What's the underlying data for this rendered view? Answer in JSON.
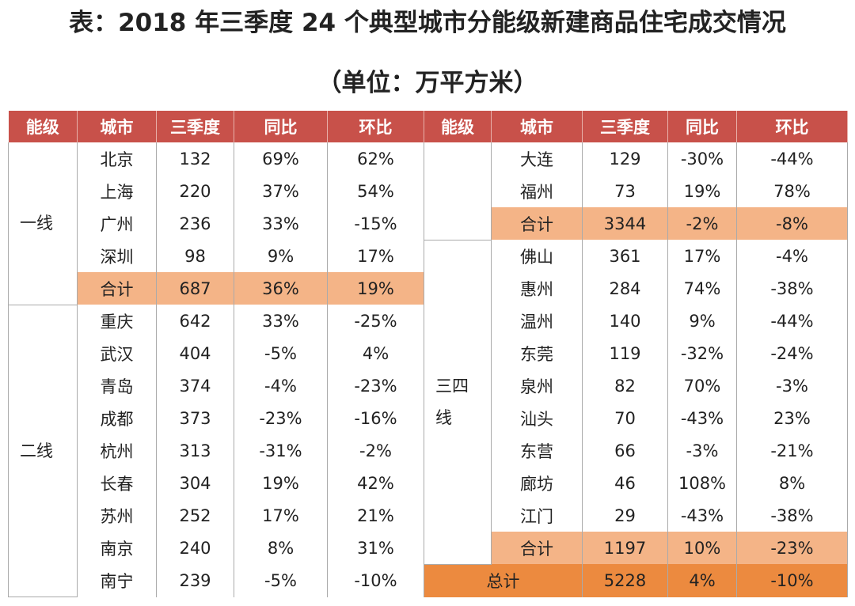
{
  "title": "表：2018 年三季度 24 个典型城市分能级新建商品住宅成交情况",
  "subtitle": "（单位：万平方米）",
  "header": [
    "能级",
    "城市",
    "三季度",
    "同比",
    "环比"
  ],
  "left": [
    {
      "tier": "一线",
      "rows": [
        [
          "北京",
          "132",
          "69%",
          "62%"
        ],
        [
          "上海",
          "220",
          "37%",
          "54%"
        ],
        [
          "广州",
          "236",
          "33%",
          "-15%"
        ],
        [
          "深圳",
          "98",
          "9%",
          "17%"
        ],
        [
          "合计",
          "687",
          "36%",
          "19%"
        ]
      ]
    },
    {
      "tier": "二线",
      "rows": [
        [
          "重庆",
          "642",
          "33%",
          "-25%"
        ],
        [
          "武汉",
          "404",
          "-5%",
          "4%"
        ],
        [
          "青岛",
          "374",
          "-4%",
          "-23%"
        ],
        [
          "成都",
          "373",
          "-23%",
          "-16%"
        ],
        [
          "杭州",
          "313",
          "-31%",
          "-2%"
        ],
        [
          "长春",
          "304",
          "19%",
          "42%"
        ],
        [
          "苏州",
          "252",
          "17%",
          "21%"
        ],
        [
          "南京",
          "240",
          "8%",
          "31%"
        ],
        [
          "南宁",
          "239",
          "-5%",
          "-10%"
        ]
      ]
    }
  ],
  "right": [
    {
      "rows": [
        [
          "大连",
          "129",
          "-30%",
          "-44%"
        ],
        [
          "福州",
          "73",
          "19%",
          "78%"
        ],
        [
          "合计",
          "3344",
          "-2%",
          "-8%"
        ]
      ]
    },
    {
      "tier": "三四线",
      "rows": [
        [
          "佛山",
          "361",
          "17%",
          "-4%"
        ],
        [
          "惠州",
          "284",
          "74%",
          "-38%"
        ],
        [
          "温州",
          "140",
          "9%",
          "-44%"
        ],
        [
          "东莞",
          "119",
          "-32%",
          "-24%"
        ],
        [
          "泉州",
          "82",
          "70%",
          "-3%"
        ],
        [
          "汕头",
          "70",
          "-43%",
          "23%"
        ],
        [
          "东营",
          "66",
          "-3%",
          "-21%"
        ],
        [
          "廊坊",
          "46",
          "108%",
          "8%"
        ],
        [
          "江门",
          "29",
          "-43%",
          "-38%"
        ],
        [
          "合计",
          "1197",
          "10%",
          "-23%"
        ]
      ]
    }
  ],
  "grand_total": [
    "总计",
    "5228",
    "4%",
    "-10%"
  ]
}
